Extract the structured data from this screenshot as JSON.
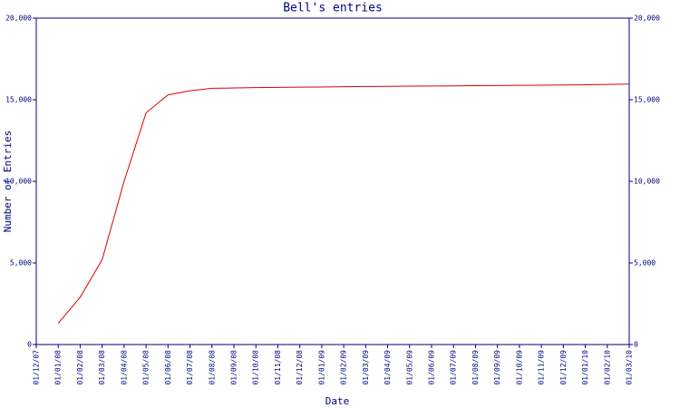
{
  "chart_data": {
    "type": "line",
    "title": "Bell's entries",
    "x_label": "Date",
    "y_label": "Number of Entries",
    "categories": [
      "01/12/07",
      "01/01/08",
      "01/02/08",
      "01/03/08",
      "01/04/08",
      "01/05/08",
      "01/06/08",
      "01/07/08",
      "01/08/08",
      "01/09/08",
      "01/10/08",
      "01/11/08",
      "01/12/08",
      "01/01/09",
      "01/02/09",
      "01/03/09",
      "01/04/09",
      "01/05/09",
      "01/06/09",
      "01/07/09",
      "01/08/09",
      "01/09/09",
      "01/10/09",
      "01/11/09",
      "01/12/09",
      "01/01/10",
      "01/02/10",
      "01/03/10"
    ],
    "series": [
      {
        "name": "Entries",
        "color": "#dd0000",
        "values": [
          null,
          1300,
          2900,
          5200,
          10000,
          14200,
          15300,
          15550,
          15700,
          15720,
          15740,
          15760,
          15770,
          15780,
          15800,
          15810,
          15820,
          15830,
          15840,
          15850,
          15860,
          15870,
          15880,
          15890,
          15900,
          15920,
          15940,
          15960
        ]
      }
    ],
    "ylim": [
      0,
      20000
    ],
    "yticks": [
      0,
      {
        "value": 5000,
        "label": "5,000"
      },
      {
        "value": 10000,
        "label": "10,000"
      },
      {
        "value": 15000,
        "label": "15,000"
      },
      {
        "value": 20000,
        "label": "20,000"
      }
    ],
    "axis_color": "#000080"
  }
}
